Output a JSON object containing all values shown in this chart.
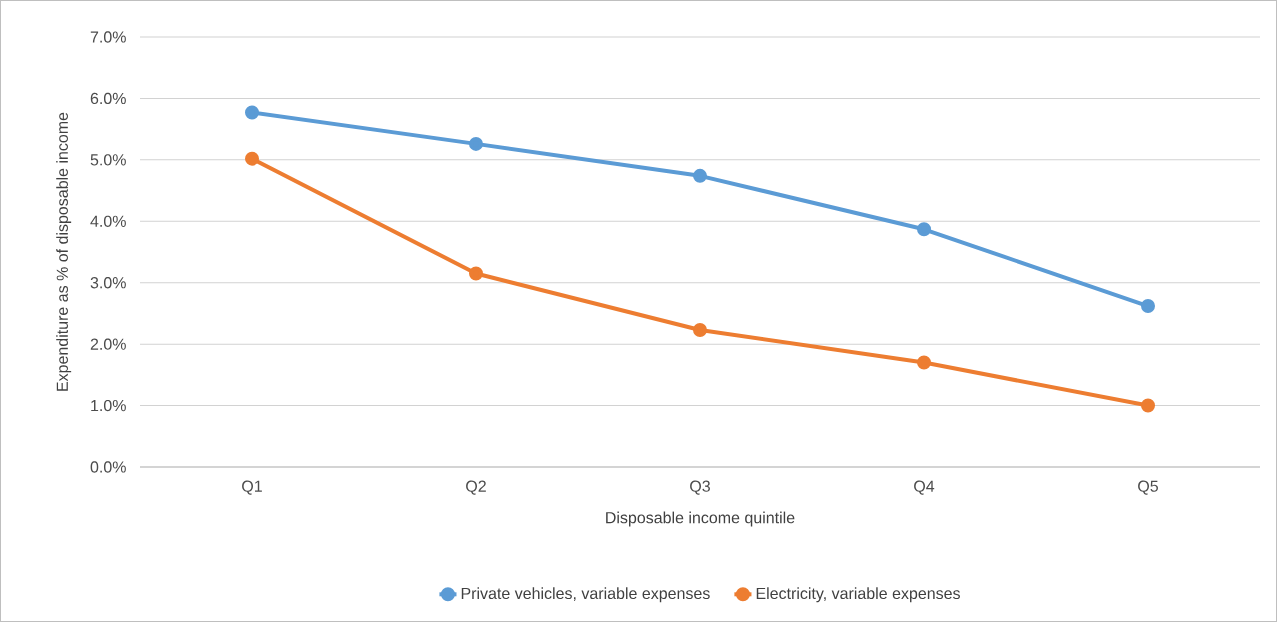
{
  "chart_data": {
    "type": "line",
    "xlabel": "Disposable income quintile",
    "ylabel": "Expenditure as % of disposable income",
    "categories": [
      "Q1",
      "Q2",
      "Q3",
      "Q4",
      "Q5"
    ],
    "series": [
      {
        "name": "Private vehicles, variable expenses",
        "color": "#5b9bd5",
        "values": [
          5.77,
          5.26,
          4.74,
          3.87,
          2.62
        ]
      },
      {
        "name": "Electricity, variable expenses",
        "color": "#ed7d31",
        "values": [
          5.02,
          3.15,
          2.23,
          1.7,
          1.0
        ]
      }
    ],
    "ylim": [
      0,
      7
    ],
    "yticks": [
      {
        "value": 0,
        "label": "0.0%"
      },
      {
        "value": 1,
        "label": "1.0%"
      },
      {
        "value": 2,
        "label": "2.0%"
      },
      {
        "value": 3,
        "label": "3.0%"
      },
      {
        "value": 4,
        "label": "4.0%"
      },
      {
        "value": 5,
        "label": "5.0%"
      },
      {
        "value": 6,
        "label": "6.0%"
      },
      {
        "value": 7,
        "label": "7.0%"
      }
    ],
    "grid": "y",
    "legend": "bottom",
    "marker": "circle",
    "line_style": "solid"
  }
}
